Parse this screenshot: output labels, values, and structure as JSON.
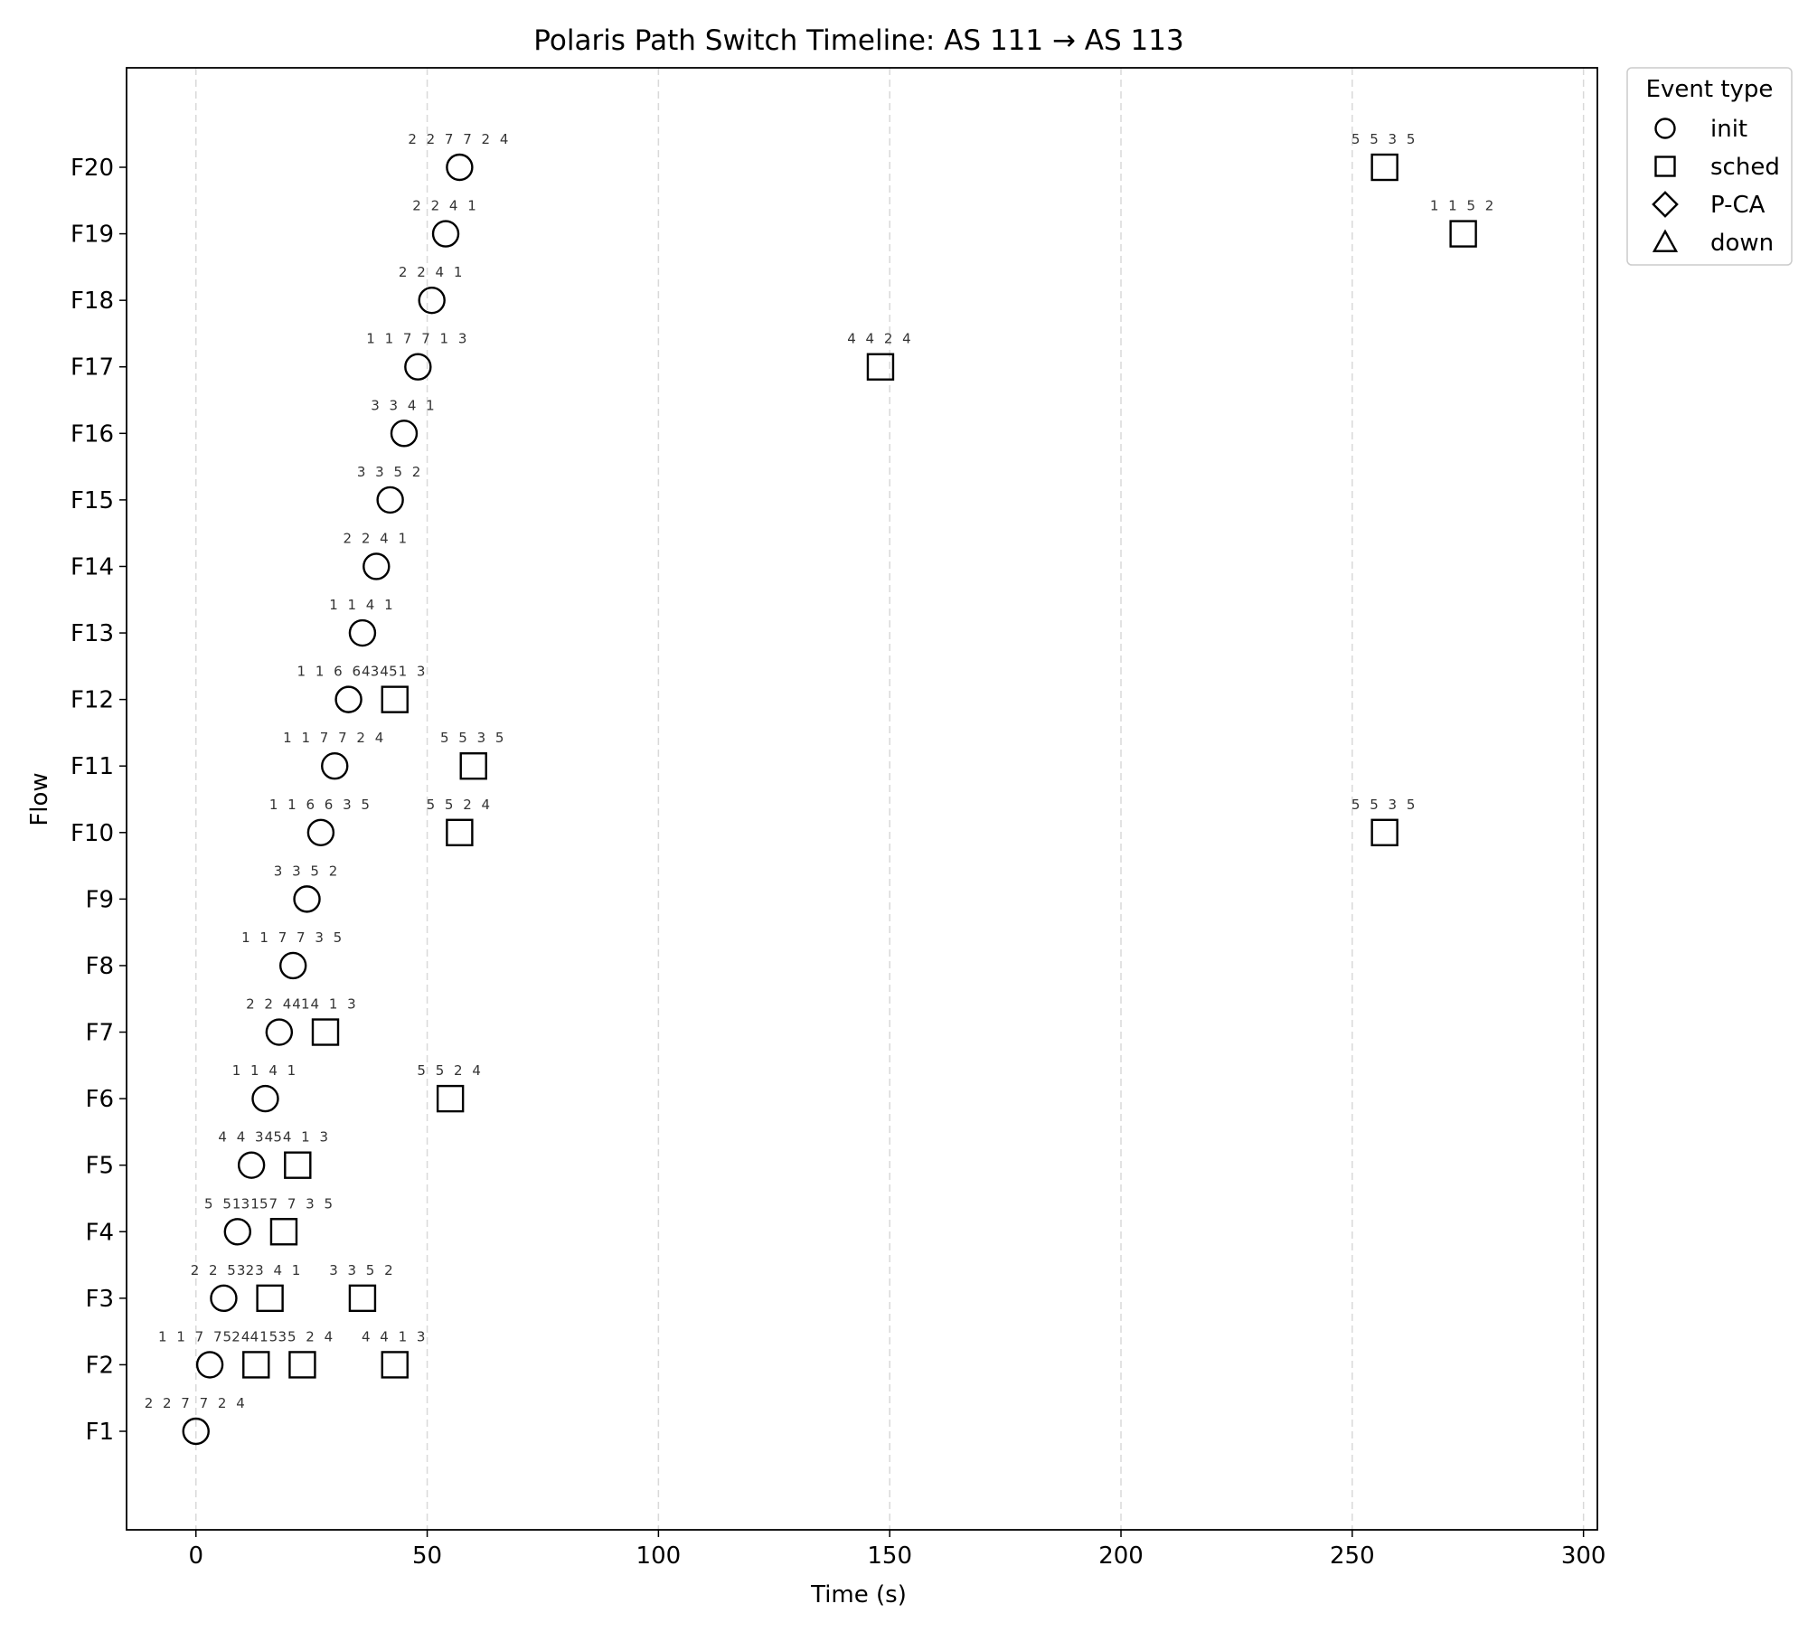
{
  "chart_data": {
    "type": "scatter",
    "title": "Polaris Path Switch Timeline: AS 111 → AS 113",
    "xlabel": "Time (s)",
    "ylabel": "Flow",
    "xlim": [
      -15,
      303
    ],
    "xticks": [
      0,
      50,
      100,
      150,
      200,
      250,
      300
    ],
    "grid": "x-dashed",
    "flows": [
      "F1",
      "F2",
      "F3",
      "F4",
      "F5",
      "F6",
      "F7",
      "F8",
      "F9",
      "F10",
      "F11",
      "F12",
      "F13",
      "F14",
      "F15",
      "F16",
      "F17",
      "F18",
      "F19",
      "F20"
    ],
    "legend": {
      "title": "Event type",
      "placement": "outside-top-right",
      "entries": [
        {
          "label": "init",
          "marker": "circle"
        },
        {
          "label": "sched",
          "marker": "square"
        },
        {
          "label": "P-CA",
          "marker": "diamond"
        },
        {
          "label": "down",
          "marker": "triangle"
        }
      ]
    },
    "events": [
      {
        "flow": "F1",
        "x": 0,
        "type": "init",
        "label": "2 2 7 7 2 4"
      },
      {
        "flow": "F2",
        "x": 3,
        "type": "init",
        "label": "1 1 7 7 2 4"
      },
      {
        "flow": "F2",
        "x": 13,
        "type": "sched",
        "label": "5 4 1 3"
      },
      {
        "flow": "F2",
        "x": 23,
        "type": "sched",
        "label": "5 5 2 4"
      },
      {
        "flow": "F2",
        "x": 43,
        "type": "sched",
        "label": "4 4 1 3"
      },
      {
        "flow": "F3",
        "x": 6,
        "type": "init",
        "label": "2 2 5 2"
      },
      {
        "flow": "F3",
        "x": 16,
        "type": "sched",
        "label": "3 3 4 1"
      },
      {
        "flow": "F3",
        "x": 36,
        "type": "sched",
        "label": "3 3 5 2"
      },
      {
        "flow": "F4",
        "x": 9,
        "type": "init",
        "label": "5 5 3 5"
      },
      {
        "flow": "F4",
        "x": 19,
        "type": "sched",
        "label": "1 1 7 7 3 5"
      },
      {
        "flow": "F5",
        "x": 12,
        "type": "init",
        "label": "4 4 3 5"
      },
      {
        "flow": "F5",
        "x": 22,
        "type": "sched",
        "label": "4 4 1 3"
      },
      {
        "flow": "F6",
        "x": 15,
        "type": "init",
        "label": "1 1 4 1"
      },
      {
        "flow": "F6",
        "x": 55,
        "type": "sched",
        "label": "5 5 2 4"
      },
      {
        "flow": "F7",
        "x": 18,
        "type": "init",
        "label": "2 2 4 1"
      },
      {
        "flow": "F7",
        "x": 28,
        "type": "sched",
        "label": "4 4 1 3"
      },
      {
        "flow": "F8",
        "x": 21,
        "type": "init",
        "label": "1 1 7 7 3 5"
      },
      {
        "flow": "F9",
        "x": 24,
        "type": "init",
        "label": "3 3 5 2"
      },
      {
        "flow": "F10",
        "x": 27,
        "type": "init",
        "label": "1 1 6 6 3 5"
      },
      {
        "flow": "F10",
        "x": 57,
        "type": "sched",
        "label": "5 5 2 4"
      },
      {
        "flow": "F10",
        "x": 257,
        "type": "sched",
        "label": "5 5 3 5"
      },
      {
        "flow": "F11",
        "x": 30,
        "type": "init",
        "label": "1 1 7 7 2 4"
      },
      {
        "flow": "F11",
        "x": 60,
        "type": "sched",
        "label": "5 5 3 5"
      },
      {
        "flow": "F12",
        "x": 33,
        "type": "init",
        "label": "1 1 6 6 3 5"
      },
      {
        "flow": "F12",
        "x": 43,
        "type": "sched",
        "label": "4 4 1 3"
      },
      {
        "flow": "F13",
        "x": 36,
        "type": "init",
        "label": "1 1 4 1"
      },
      {
        "flow": "F14",
        "x": 39,
        "type": "init",
        "label": "2 2 4 1"
      },
      {
        "flow": "F15",
        "x": 42,
        "type": "init",
        "label": "3 3 5 2"
      },
      {
        "flow": "F16",
        "x": 45,
        "type": "init",
        "label": "3 3 4 1"
      },
      {
        "flow": "F17",
        "x": 48,
        "type": "init",
        "label": "1 1 7 7 1 3"
      },
      {
        "flow": "F17",
        "x": 148,
        "type": "sched",
        "label": "4 4 2 4"
      },
      {
        "flow": "F18",
        "x": 51,
        "type": "init",
        "label": "2 2 4 1"
      },
      {
        "flow": "F19",
        "x": 54,
        "type": "init",
        "label": "2 2 4 1"
      },
      {
        "flow": "F19",
        "x": 274,
        "type": "sched",
        "label": "1 1 5 2"
      },
      {
        "flow": "F20",
        "x": 57,
        "type": "init",
        "label": "2 2 7 7 2 4"
      },
      {
        "flow": "F20",
        "x": 257,
        "type": "sched",
        "label": "5 5 3 5"
      }
    ]
  }
}
